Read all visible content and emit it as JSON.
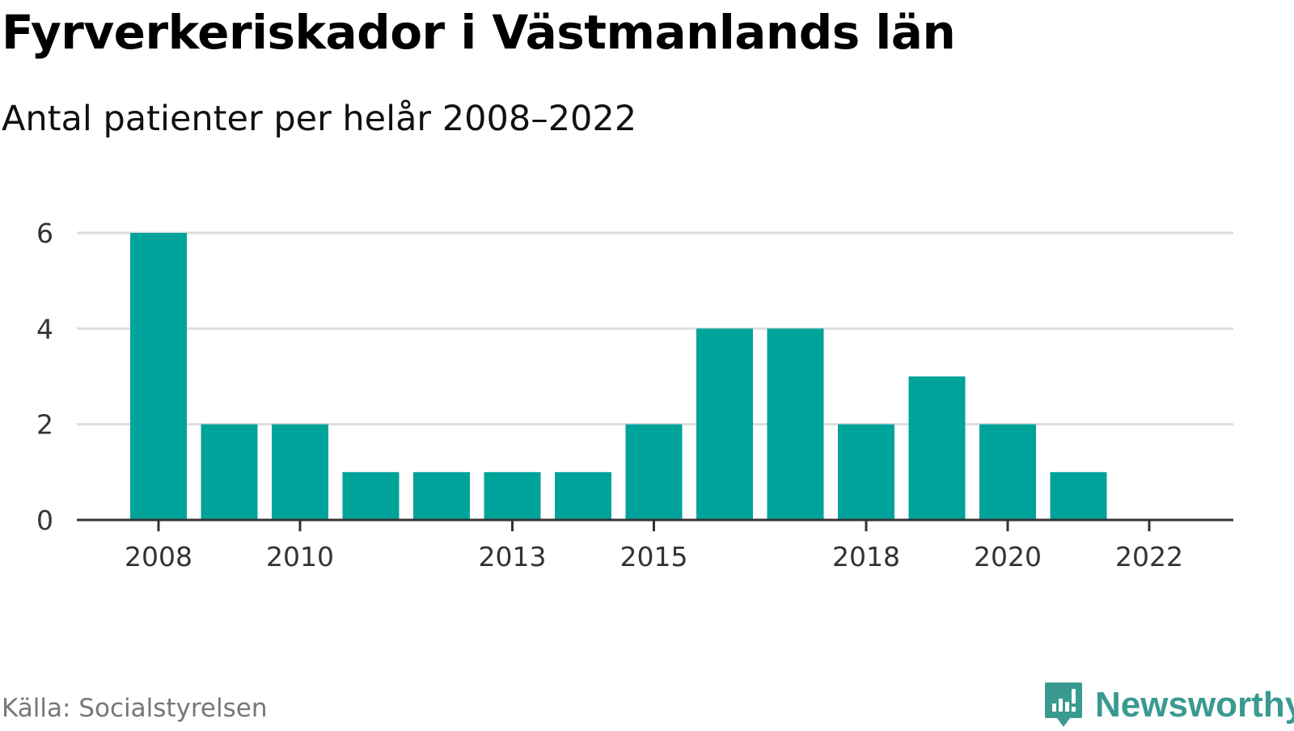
{
  "header": {
    "title": "Fyrverkeriskador i Västmanlands län",
    "subtitle": "Antal patienter per helår 2008–2022"
  },
  "footer": {
    "source": "Källa: Socialstyrelsen",
    "brand": "Newsworthy",
    "brand_icon": "newsworthy-logo-icon"
  },
  "colors": {
    "bar": "#00a39a",
    "grid": "#dddddd",
    "axis": "#333333",
    "brand": "#3a9a91"
  },
  "chart_data": {
    "type": "bar",
    "title": "Fyrverkeriskador i Västmanlands län",
    "subtitle": "Antal patienter per helår 2008–2022",
    "xlabel": "",
    "ylabel": "",
    "categories": [
      2008,
      2009,
      2010,
      2011,
      2012,
      2013,
      2014,
      2015,
      2016,
      2017,
      2018,
      2019,
      2020,
      2021,
      2022
    ],
    "values": [
      6,
      2,
      2,
      1,
      1,
      1,
      1,
      2,
      4,
      4,
      2,
      3,
      2,
      1,
      0
    ],
    "x_tick_labels": [
      "2008",
      "2010",
      "2013",
      "2015",
      "2018",
      "2020",
      "2022"
    ],
    "y_ticks": [
      0,
      2,
      4,
      6
    ],
    "ylim": [
      0,
      6
    ],
    "grid": true,
    "legend": "none"
  }
}
